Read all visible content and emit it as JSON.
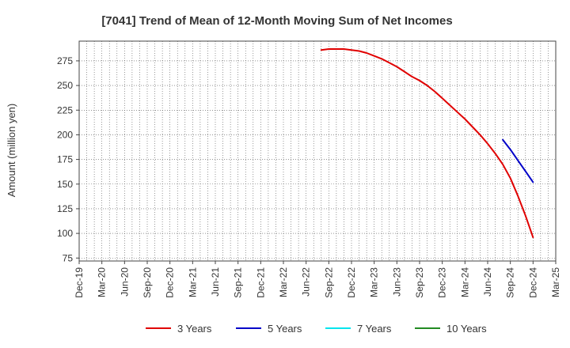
{
  "chart_data": {
    "type": "line",
    "title": "[7041]  Trend of Mean of 12-Month Moving Sum of Net Incomes",
    "ylabel": "Amount (million yen)",
    "xlabel": "",
    "ylim": [
      72,
      295
    ],
    "y_ticks": [
      75,
      100,
      125,
      150,
      175,
      200,
      225,
      250,
      275
    ],
    "x_tick_labels": [
      "Dec-19",
      "Mar-20",
      "Jun-20",
      "Sep-20",
      "Dec-20",
      "Mar-21",
      "Jun-21",
      "Sep-21",
      "Dec-21",
      "Mar-22",
      "Jun-22",
      "Sep-22",
      "Dec-22",
      "Mar-23",
      "Jun-23",
      "Sep-23",
      "Dec-23",
      "Mar-24",
      "Jun-24",
      "Sep-24",
      "Dec-24",
      "Mar-25"
    ],
    "grid": true,
    "legend_position": "bottom",
    "series": [
      {
        "name": "3 Years",
        "color": "#e00000",
        "x": [
          "Aug-22",
          "Sep-22",
          "Oct-22",
          "Nov-22",
          "Dec-22",
          "Jan-23",
          "Feb-23",
          "Mar-23",
          "Apr-23",
          "May-23",
          "Jun-23",
          "Jul-23",
          "Aug-23",
          "Sep-23",
          "Oct-23",
          "Nov-23",
          "Dec-23",
          "Jan-24",
          "Feb-24",
          "Mar-24",
          "Apr-24",
          "May-24",
          "Jun-24",
          "Jul-24",
          "Aug-24",
          "Sep-24",
          "Oct-24",
          "Nov-24",
          "Dec-24"
        ],
        "values": [
          286,
          287,
          287,
          287,
          286,
          285,
          283,
          280,
          277,
          273,
          269,
          264,
          259,
          255,
          250,
          244,
          237,
          230,
          223,
          216,
          208,
          200,
          191,
          181,
          170,
          156,
          138,
          118,
          96
        ]
      },
      {
        "name": "5 Years",
        "color": "#0000c8",
        "x": [
          "Aug-24",
          "Sep-24",
          "Oct-24",
          "Nov-24",
          "Dec-24"
        ],
        "values": [
          195,
          185,
          174,
          163,
          152
        ]
      },
      {
        "name": "7 Years",
        "color": "#00e5ee",
        "x": [],
        "values": []
      },
      {
        "name": "10 Years",
        "color": "#228b22",
        "x": [],
        "values": []
      }
    ]
  }
}
